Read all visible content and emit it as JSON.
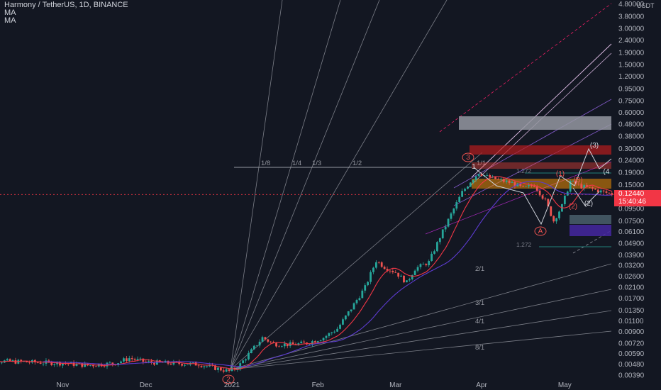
{
  "header": {
    "symbol_line": "Harmony / TetherUS, 1D, BINANCE",
    "indicators": [
      "MA",
      "MA"
    ]
  },
  "currency": "USDT",
  "last_price": {
    "value": "0.12440",
    "countdown": "15:40:46",
    "color": "#f23645"
  },
  "colors": {
    "background": "#131722",
    "up": "#26a69a",
    "down": "#ef5350",
    "grid_text": "#b2b5be"
  },
  "chart_data": {
    "type": "candlestick",
    "scale": "log",
    "x_ticks": [
      {
        "label": "Nov",
        "date": "2020-11-01"
      },
      {
        "label": "Dec",
        "date": "2020-12-01"
      },
      {
        "label": "2021",
        "date": "2021-01-01"
      },
      {
        "label": "Feb",
        "date": "2021-02-01"
      },
      {
        "label": "Mar",
        "date": "2021-03-01"
      },
      {
        "label": "Apr",
        "date": "2021-04-01"
      },
      {
        "label": "May",
        "date": "2021-05-01"
      }
    ],
    "y_ticks": [
      "4.80000",
      "3.80000",
      "3.00000",
      "2.40000",
      "1.90000",
      "1.50000",
      "1.20000",
      "0.95000",
      "0.75000",
      "0.60000",
      "0.48000",
      "0.38000",
      "0.30000",
      "0.24000",
      "0.19000",
      "0.15000",
      "0.09500",
      "0.07500",
      "0.06100",
      "0.04900",
      "0.03900",
      "0.03200",
      "0.02600",
      "0.02100",
      "0.01700",
      "0.01350",
      "0.01100",
      "0.00900",
      "0.00720",
      "0.00590",
      "0.00480",
      "0.00390"
    ],
    "close_path": [
      [
        "2020-10-01",
        0.0052
      ],
      [
        "2020-10-10",
        0.0051
      ],
      [
        "2020-10-20",
        0.005
      ],
      [
        "2020-11-01",
        0.0049
      ],
      [
        "2020-11-10",
        0.0047
      ],
      [
        "2020-11-20",
        0.0049
      ],
      [
        "2020-11-25",
        0.0054
      ],
      [
        "2020-12-01",
        0.005
      ],
      [
        "2020-12-10",
        0.0049
      ],
      [
        "2020-12-20",
        0.0048
      ],
      [
        "2020-12-31",
        0.0042
      ],
      [
        "2021-01-03",
        0.0045
      ],
      [
        "2021-01-08",
        0.0062
      ],
      [
        "2021-01-12",
        0.008
      ],
      [
        "2021-01-16",
        0.0071
      ],
      [
        "2021-01-22",
        0.007
      ],
      [
        "2021-01-28",
        0.0072
      ],
      [
        "2021-02-03",
        0.008
      ],
      [
        "2021-02-08",
        0.0095
      ],
      [
        "2021-02-13",
        0.014
      ],
      [
        "2021-02-18",
        0.021
      ],
      [
        "2021-02-22",
        0.035
      ],
      [
        "2021-02-25",
        0.031
      ],
      [
        "2021-03-01",
        0.028
      ],
      [
        "2021-03-05",
        0.023
      ],
      [
        "2021-03-08",
        0.03
      ],
      [
        "2021-03-13",
        0.034
      ],
      [
        "2021-03-17",
        0.055
      ],
      [
        "2021-03-21",
        0.085
      ],
      [
        "2021-03-25",
        0.13
      ],
      [
        "2021-03-28",
        0.16
      ],
      [
        "2021-03-31",
        0.19
      ],
      [
        "2021-04-03",
        0.175
      ],
      [
        "2021-04-07",
        0.165
      ],
      [
        "2021-04-12",
        0.155
      ],
      [
        "2021-04-16",
        0.14
      ],
      [
        "2021-04-20",
        0.15
      ],
      [
        "2021-04-24",
        0.11
      ],
      [
        "2021-04-27",
        0.075
      ],
      [
        "2021-04-30",
        0.1
      ],
      [
        "2021-05-03",
        0.16
      ],
      [
        "2021-05-07",
        0.145
      ],
      [
        "2021-05-11",
        0.138
      ],
      [
        "2021-05-15",
        0.13
      ],
      [
        "2021-05-19",
        0.1244
      ]
    ],
    "annotations": {
      "fan_labels": [
        "1/8",
        "1/4",
        "1/3",
        "1/2",
        "1/1",
        "2/1",
        "3/1",
        "4/1",
        "8/1"
      ],
      "fib_labels": [
        "1.272",
        "1.272"
      ],
      "wave_labels": [
        "3",
        "2",
        "1",
        "(1)",
        "(B)",
        "(2)",
        "(2)",
        "(3)",
        "A",
        "(4"
      ]
    }
  }
}
